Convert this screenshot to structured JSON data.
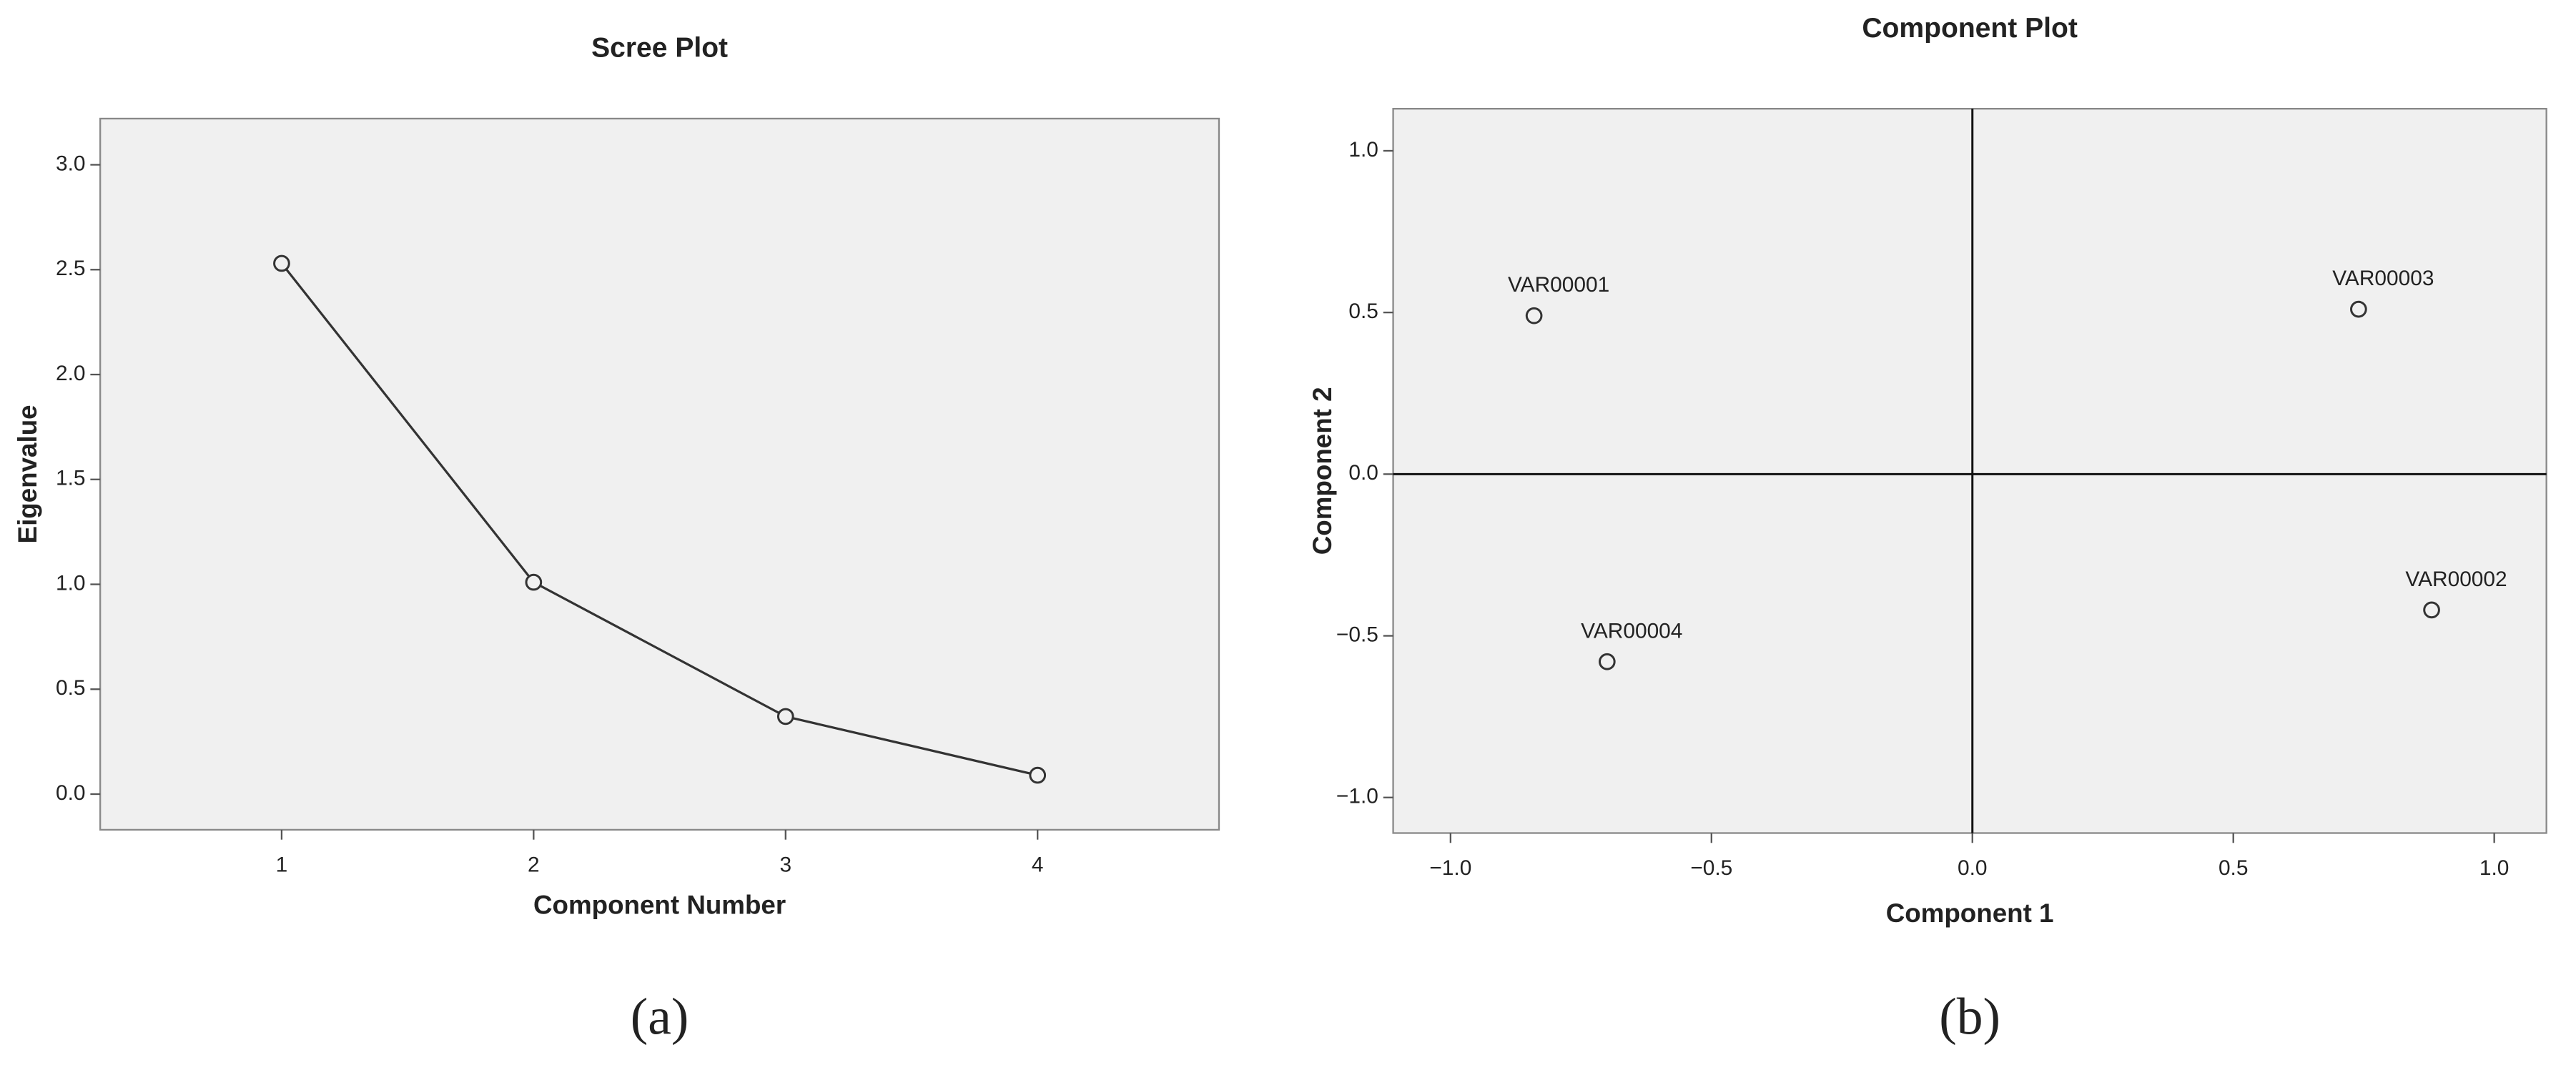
{
  "chart_data": [
    {
      "type": "line",
      "title": "Scree Plot",
      "x_label": "Component Number",
      "y_label": "Eigenvalue",
      "caption": "(a)",
      "x": [
        1,
        2,
        3,
        4
      ],
      "values": [
        2.53,
        1.01,
        0.37,
        0.09
      ],
      "color": "#333333",
      "xlim": [
        0.28,
        4.72
      ],
      "xticks": [
        1,
        2,
        3,
        4
      ],
      "ylim": [
        -0.17,
        3.22
      ],
      "yticks": [
        {
          "value": 0,
          "label": "0.0"
        },
        {
          "value": 0.5,
          "label": "0.5"
        },
        {
          "value": 1,
          "label": "1.0"
        },
        {
          "value": 1.5,
          "label": "1.5"
        },
        {
          "value": 2,
          "label": "2.0"
        },
        {
          "value": 2.5,
          "label": "2.5"
        },
        {
          "value": 3,
          "label": "3.0"
        }
      ],
      "markers": true,
      "background": "#f0f0f0"
    },
    {
      "type": "scatter",
      "title": "Component Plot",
      "x_label": "Component 1",
      "y_label": "Component 2",
      "caption": "(b)",
      "x": [
        -0.84,
        0.88,
        0.74,
        -0.7
      ],
      "values": [
        0.49,
        -0.42,
        0.51,
        -0.58
      ],
      "point_labels": [
        "VAR00001",
        "VAR00002",
        "VAR00003",
        "VAR00004"
      ],
      "color": "#333333",
      "xlim": [
        -1.11,
        1.1
      ],
      "xticks": [
        {
          "value": -1,
          "label": "−1.0"
        },
        {
          "value": -0.5,
          "label": "−0.5"
        },
        {
          "value": 0,
          "label": "0.0"
        },
        {
          "value": 0.5,
          "label": "0.5"
        },
        {
          "value": 1,
          "label": "1.0"
        }
      ],
      "ylim": [
        -1.11,
        1.13
      ],
      "yticks": [
        {
          "value": -1,
          "label": "−1.0"
        },
        {
          "value": -0.5,
          "label": "−0.5"
        },
        {
          "value": 0,
          "label": "0.0"
        },
        {
          "value": 0.5,
          "label": "0.5"
        },
        {
          "value": 1,
          "label": "1.0"
        }
      ],
      "zero_lines": true,
      "background": "#f0f0f0"
    }
  ]
}
